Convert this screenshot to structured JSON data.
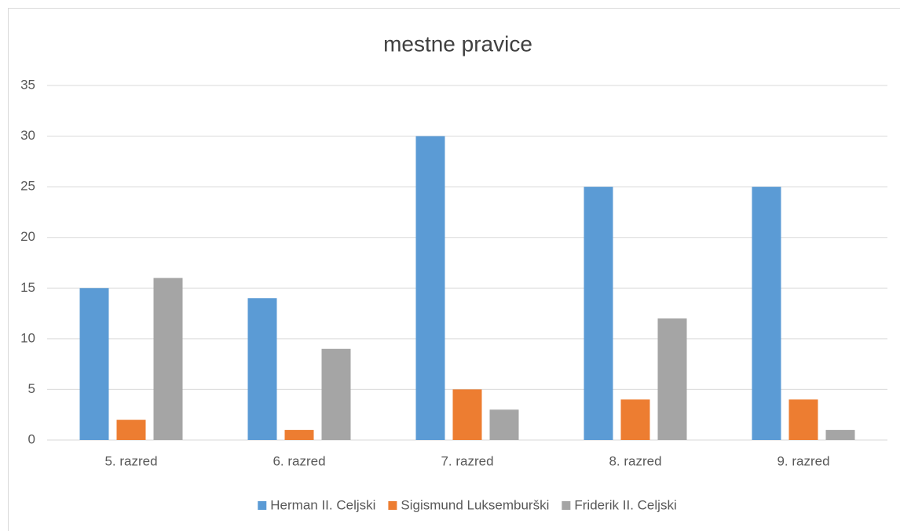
{
  "chart_data": {
    "type": "bar",
    "title": "mestne pravice",
    "categories": [
      "5. razred",
      "6. razred",
      "7. razred",
      "8. razred",
      "9. razred"
    ],
    "series": [
      {
        "name": "Herman II. Celjski",
        "color": "#5b9bd5",
        "values": [
          15,
          14,
          30,
          25,
          25
        ]
      },
      {
        "name": "Sigismund Luksemburški",
        "color": "#ed7d31",
        "values": [
          2,
          1,
          5,
          4,
          4
        ]
      },
      {
        "name": "Friderik II. Celjski",
        "color": "#a5a5a5",
        "values": [
          16,
          9,
          3,
          12,
          1
        ]
      }
    ],
    "ylim": [
      0,
      35
    ],
    "yticks": [
      0,
      5,
      10,
      15,
      20,
      25,
      30,
      35
    ],
    "grid": true,
    "legend": "bottom"
  }
}
